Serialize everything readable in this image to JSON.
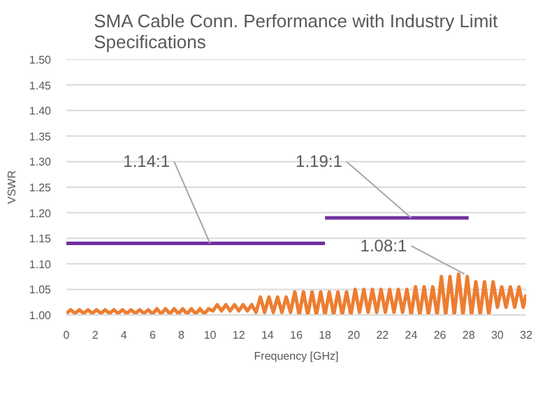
{
  "chart_data": {
    "type": "line",
    "title": "SMA Cable Conn. Performance with Industry Limit Specifications",
    "xlabel": "Frequency [GHz]",
    "ylabel": "VSWR",
    "xlim": [
      0,
      32
    ],
    "xticks": [
      0,
      2,
      4,
      6,
      8,
      10,
      12,
      14,
      16,
      18,
      20,
      22,
      24,
      26,
      28,
      30,
      32
    ],
    "ylim": [
      1.0,
      1.5
    ],
    "yticks": [
      {
        "value": 1.0,
        "label": "1.00"
      },
      {
        "value": 1.05,
        "label": "1.05"
      },
      {
        "value": 1.1,
        "label": "1.10"
      },
      {
        "value": 1.15,
        "label": "1.15"
      },
      {
        "value": 1.2,
        "label": "1.20"
      },
      {
        "value": 1.25,
        "label": "1.25"
      },
      {
        "value": 1.3,
        "label": "1.30"
      },
      {
        "value": 1.35,
        "label": "1.35"
      },
      {
        "value": 1.4,
        "label": "1.40"
      },
      {
        "value": 1.45,
        "label": "1.45"
      },
      {
        "value": 1.5,
        "label": "1.50"
      }
    ],
    "grid": "y",
    "series": [
      {
        "color": "#ed7d31",
        "x": [
          0,
          0.3,
          0.6,
          0.9,
          1.2,
          1.5,
          1.8,
          2.1,
          2.4,
          2.7,
          3.0,
          3.3,
          3.6,
          3.9,
          4.2,
          4.5,
          4.8,
          5.1,
          5.4,
          5.7,
          6.0,
          6.3,
          6.6,
          6.9,
          7.2,
          7.5,
          7.8,
          8.1,
          8.4,
          8.7,
          9.0,
          9.3,
          9.6,
          9.9,
          10.2,
          10.5,
          10.8,
          11.1,
          11.4,
          11.7,
          12.0,
          12.3,
          12.6,
          12.9,
          13.2,
          13.5,
          13.8,
          14.1,
          14.4,
          14.7,
          15.0,
          15.3,
          15.6,
          15.9,
          16.2,
          16.5,
          16.8,
          17.1,
          17.4,
          17.7,
          18.0,
          18.3,
          18.6,
          18.9,
          19.2,
          19.5,
          19.8,
          20.1,
          20.4,
          20.7,
          21.0,
          21.3,
          21.6,
          21.9,
          22.2,
          22.5,
          22.8,
          23.1,
          23.4,
          23.7,
          24.0,
          24.3,
          24.6,
          24.9,
          25.2,
          25.5,
          25.8,
          26.1,
          26.4,
          26.7,
          27.0,
          27.3,
          27.6,
          27.9,
          28.2,
          28.5,
          28.8,
          29.1,
          29.4,
          29.7,
          30.0,
          30.3,
          30.6,
          30.9,
          31.2,
          31.5,
          31.8,
          32
        ],
        "values": [
          1.003,
          1.01,
          1.003,
          1.01,
          1.003,
          1.01,
          1.003,
          1.01,
          1.003,
          1.01,
          1.003,
          1.01,
          1.003,
          1.01,
          1.003,
          1.01,
          1.003,
          1.01,
          1.003,
          1.01,
          1.002,
          1.012,
          1.002,
          1.012,
          1.002,
          1.012,
          1.002,
          1.012,
          1.002,
          1.012,
          1.002,
          1.012,
          1.002,
          1.012,
          1.008,
          1.02,
          1.008,
          1.02,
          1.008,
          1.02,
          1.008,
          1.02,
          1.008,
          1.02,
          1.005,
          1.035,
          1.005,
          1.035,
          1.005,
          1.035,
          1.005,
          1.035,
          1.005,
          1.045,
          1.0,
          1.045,
          1.0,
          1.045,
          1.0,
          1.045,
          1.0,
          1.045,
          1.0,
          1.045,
          1.0,
          1.045,
          1.0,
          1.05,
          1.005,
          1.05,
          1.005,
          1.05,
          1.005,
          1.05,
          1.005,
          1.05,
          1.005,
          1.05,
          1.005,
          1.05,
          1.0,
          1.055,
          1.0,
          1.055,
          1.0,
          1.055,
          1.0,
          1.075,
          1.0,
          1.075,
          1.0,
          1.08,
          1.0,
          1.075,
          1.0,
          1.065,
          1.0,
          1.065,
          1.0,
          1.065,
          1.015,
          1.055,
          1.015,
          1.055,
          1.015,
          1.055,
          1.015,
          1.04
        ]
      },
      {
        "color": "#7030a0",
        "x": [
          0,
          18
        ],
        "values": [
          1.14,
          1.14
        ]
      },
      {
        "color": "#7030a0",
        "x": [
          18,
          28
        ],
        "values": [
          1.19,
          1.19
        ]
      }
    ],
    "annotations": [
      {
        "text": "1.14:1",
        "x": 10,
        "y": 1.14
      },
      {
        "text": "1.19:1",
        "x": 24,
        "y": 1.19
      },
      {
        "text": "1.08:1",
        "x": 27.7,
        "y": 1.08
      }
    ]
  }
}
